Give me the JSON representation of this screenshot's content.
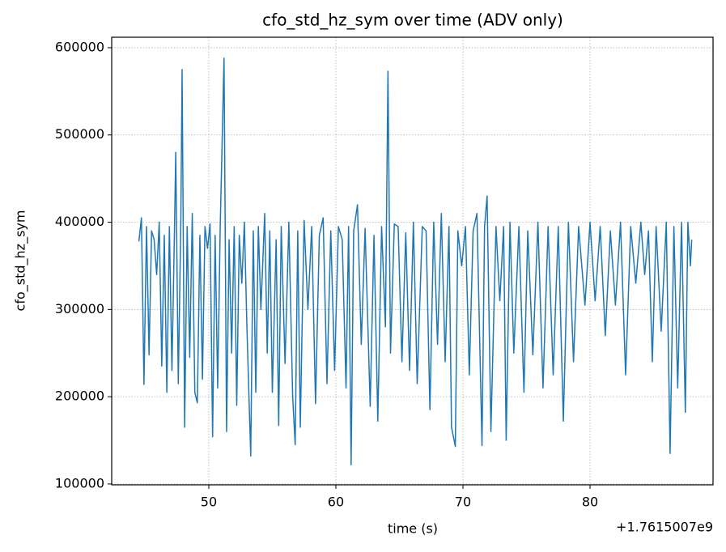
{
  "chart_data": {
    "type": "line",
    "title": "cfo_std_hz_sym over time (ADV only)",
    "x_label": "time (s)",
    "y_label": "cfo_std_hz_sym",
    "x_offset_label": "+1.7615007e9",
    "xlim": [
      42.36,
      89.68
    ],
    "ylim": [
      99000,
      612000
    ],
    "xticks": [
      50,
      60,
      70,
      80
    ],
    "yticks": [
      100000,
      200000,
      300000,
      400000,
      500000,
      600000
    ],
    "grid": true,
    "series": [
      {
        "name": "cfo_std_hz_sym",
        "color": "#1f77b4",
        "x": [
          44.5,
          44.7,
          44.9,
          45.1,
          45.3,
          45.5,
          45.7,
          45.9,
          46.1,
          46.3,
          46.5,
          46.7,
          46.9,
          47.1,
          47.3,
          47.4,
          47.6,
          47.8,
          47.9,
          48.1,
          48.3,
          48.5,
          48.7,
          48.9,
          49.1,
          49.3,
          49.5,
          49.7,
          49.9,
          50.1,
          50.3,
          50.5,
          50.7,
          50.9,
          51.2,
          51.4,
          51.6,
          51.8,
          52.0,
          52.2,
          52.4,
          52.6,
          52.8,
          53.0,
          53.3,
          53.5,
          53.7,
          53.9,
          54.1,
          54.4,
          54.6,
          54.8,
          55.0,
          55.3,
          55.5,
          55.7,
          56.0,
          56.3,
          56.6,
          56.8,
          57.0,
          57.2,
          57.5,
          57.8,
          58.1,
          58.4,
          58.7,
          59.0,
          59.3,
          59.6,
          59.9,
          60.2,
          60.5,
          60.8,
          61.0,
          61.2,
          61.4,
          61.7,
          62.0,
          62.3,
          62.7,
          63.0,
          63.3,
          63.6,
          63.9,
          64.1,
          64.3,
          64.6,
          64.9,
          65.2,
          65.5,
          65.8,
          66.1,
          66.4,
          66.8,
          67.1,
          67.4,
          67.7,
          68.0,
          68.3,
          68.6,
          68.9,
          69.1,
          69.4,
          69.6,
          69.9,
          70.2,
          70.5,
          70.8,
          71.1,
          71.5,
          71.7,
          71.9,
          72.2,
          72.6,
          72.9,
          73.2,
          73.4,
          73.7,
          74.0,
          74.4,
          74.8,
          75.1,
          75.5,
          75.9,
          76.3,
          76.7,
          77.1,
          77.5,
          77.9,
          78.3,
          78.7,
          79.1,
          79.6,
          80.0,
          80.4,
          80.8,
          81.2,
          81.6,
          82.0,
          82.4,
          82.8,
          83.2,
          83.6,
          84.0,
          84.3,
          84.6,
          84.9,
          85.2,
          85.6,
          86.0,
          86.3,
          86.6,
          86.9,
          87.2,
          87.5,
          87.7,
          87.9,
          88.0
        ],
        "values": [
          378000,
          405000,
          214000,
          395000,
          248000,
          390000,
          380000,
          340000,
          400000,
          235000,
          385000,
          205000,
          395000,
          230000,
          390000,
          480000,
          215000,
          400000,
          575000,
          165000,
          395000,
          245000,
          410000,
          205000,
          193000,
          385000,
          220000,
          395000,
          370000,
          398000,
          154000,
          385000,
          210000,
          395000,
          588000,
          160000,
          380000,
          250000,
          395000,
          190000,
          385000,
          330000,
          400000,
          280000,
          132000,
          390000,
          205000,
          395000,
          300000,
          410000,
          250000,
          390000,
          205000,
          380000,
          167000,
          395000,
          238000,
          400000,
          200000,
          145000,
          390000,
          165000,
          402000,
          300000,
          395000,
          192000,
          385000,
          405000,
          215000,
          390000,
          230000,
          395000,
          380000,
          210000,
          395000,
          122000,
          390000,
          420000,
          260000,
          393000,
          189000,
          385000,
          172000,
          395000,
          280000,
          573000,
          250000,
          398000,
          395000,
          240000,
          388000,
          230000,
          400000,
          215000,
          395000,
          390000,
          185000,
          400000,
          260000,
          410000,
          240000,
          395000,
          165000,
          143000,
          390000,
          350000,
          395000,
          225000,
          390000,
          410000,
          144000,
          395000,
          430000,
          160000,
          395000,
          310000,
          395000,
          150000,
          400000,
          250000,
          395000,
          205000,
          390000,
          248000,
          400000,
          210000,
          395000,
          225000,
          395000,
          172000,
          400000,
          240000,
          395000,
          305000,
          400000,
          310000,
          395000,
          270000,
          390000,
          305000,
          400000,
          225000,
          395000,
          330000,
          400000,
          340000,
          390000,
          240000,
          395000,
          275000,
          400000,
          135000,
          395000,
          210000,
          400000,
          182000,
          400000,
          350000,
          380000
        ]
      }
    ]
  }
}
